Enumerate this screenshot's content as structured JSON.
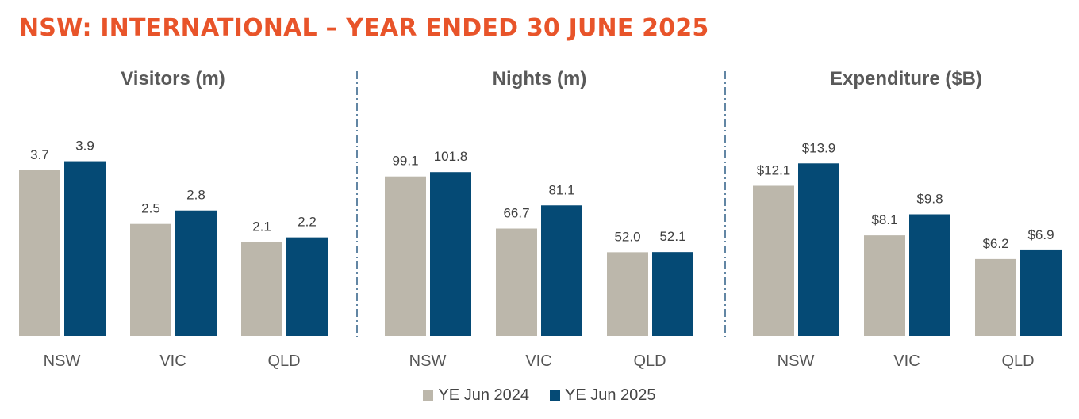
{
  "header": {
    "title": "NSW: INTERNATIONAL – YEAR ENDED 30 JUNE 2025"
  },
  "colors": {
    "series_2024": "#bcb7ab",
    "series_2025": "#054a75",
    "title": "#e8542a",
    "divider": "#2f5f85"
  },
  "legend": {
    "items": [
      {
        "label": "YE Jun 2024",
        "color": "#bcb7ab"
      },
      {
        "label": "YE Jun 2025",
        "color": "#054a75"
      }
    ]
  },
  "chart_data": [
    {
      "type": "bar",
      "title": "Visitors (m)",
      "categories": [
        "NSW",
        "VIC",
        "QLD"
      ],
      "series": [
        {
          "name": "YE Jun 2024",
          "values": [
            3.7,
            2.5,
            2.1
          ],
          "labels": [
            "3.7",
            "2.5",
            "2.1"
          ]
        },
        {
          "name": "YE Jun 2025",
          "values": [
            3.9,
            2.8,
            2.2
          ],
          "labels": [
            "3.9",
            "2.8",
            "2.2"
          ]
        }
      ],
      "ylim": [
        0,
        4.6
      ]
    },
    {
      "type": "bar",
      "title": "Nights (m)",
      "categories": [
        "NSW",
        "VIC",
        "QLD"
      ],
      "series": [
        {
          "name": "YE Jun 2024",
          "values": [
            99.1,
            66.7,
            52.0
          ],
          "labels": [
            "99.1",
            "66.7",
            "52.0"
          ]
        },
        {
          "name": "YE Jun 2025",
          "values": [
            101.8,
            81.1,
            52.1
          ],
          "labels": [
            "101.8",
            "81.1",
            "52.1"
          ]
        }
      ],
      "ylim": [
        0,
        128
      ]
    },
    {
      "type": "bar",
      "title": "Expenditure ($B)",
      "categories": [
        "NSW",
        "VIC",
        "QLD"
      ],
      "series": [
        {
          "name": "YE Jun 2024",
          "values": [
            12.1,
            8.1,
            6.2
          ],
          "labels": [
            "$12.1",
            "$8.1",
            "$6.2"
          ]
        },
        {
          "name": "YE Jun 2025",
          "values": [
            13.9,
            9.8,
            6.9
          ],
          "labels": [
            "$13.9",
            "$9.8",
            "$6.9"
          ]
        }
      ],
      "ylim": [
        0,
        16.6
      ]
    }
  ]
}
